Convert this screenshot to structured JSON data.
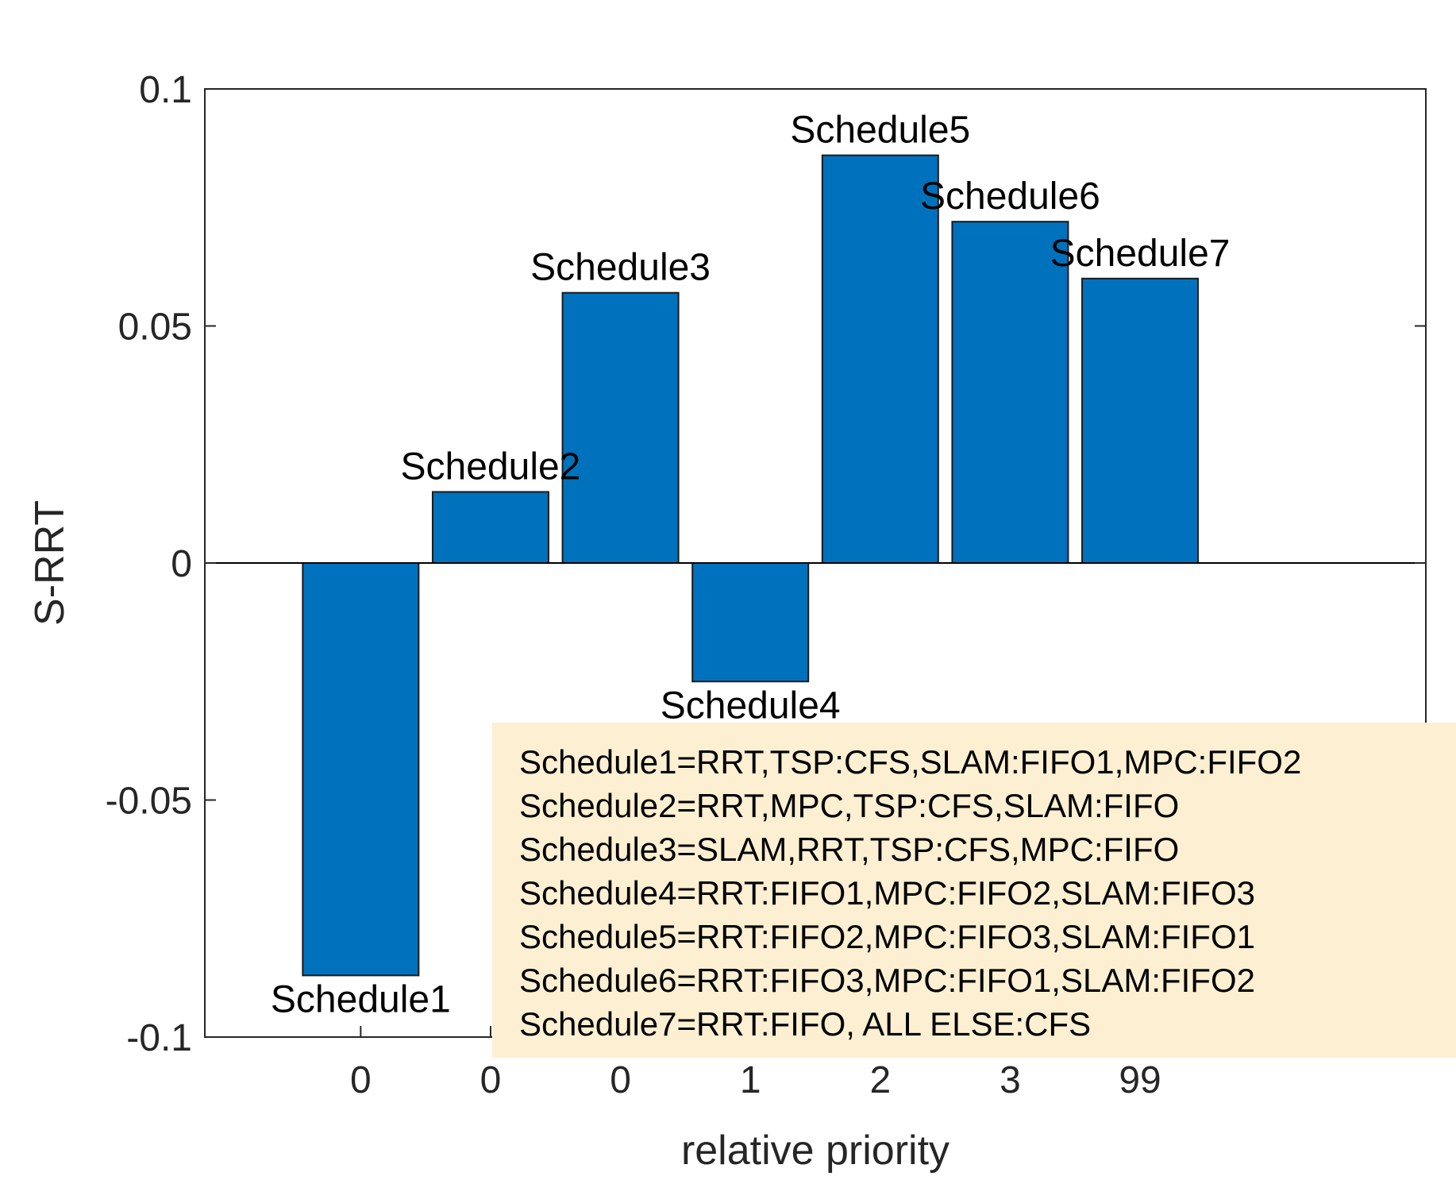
{
  "chart_data": {
    "type": "bar",
    "xlabel": "relative priority",
    "ylabel": "S-RRT",
    "ylim": [
      -0.1,
      0.1
    ],
    "yticks": [
      -0.1,
      -0.05,
      0,
      0.05,
      0.1
    ],
    "ytick_labels": [
      "-0.1",
      "-0.05",
      "0",
      "0.05",
      "0.1"
    ],
    "categories": [
      "0",
      "0",
      "0",
      "1",
      "2",
      "3",
      "99"
    ],
    "bar_labels": [
      "Schedule1",
      "Schedule2",
      "Schedule3",
      "Schedule4",
      "Schedule5",
      "Schedule6",
      "Schedule7"
    ],
    "values": [
      -0.087,
      0.015,
      0.057,
      -0.025,
      0.086,
      0.072,
      0.06
    ],
    "bar_color": "#0072bd",
    "grid": false,
    "legend": "none"
  },
  "annotation": {
    "background": "#fdf0d2",
    "lines": [
      "Schedule1=RRT,TSP:CFS,SLAM:FIFO1,MPC:FIFO2",
      "Schedule2=RRT,MPC,TSP:CFS,SLAM:FIFO",
      "Schedule3=SLAM,RRT,TSP:CFS,MPC:FIFO",
      "Schedule4=RRT:FIFO1,MPC:FIFO2,SLAM:FIFO3",
      "Schedule5=RRT:FIFO2,MPC:FIFO3,SLAM:FIFO1",
      "Schedule6=RRT:FIFO3,MPC:FIFO1,SLAM:FIFO2",
      "Schedule7=RRT:FIFO, ALL ELSE:CFS"
    ]
  }
}
